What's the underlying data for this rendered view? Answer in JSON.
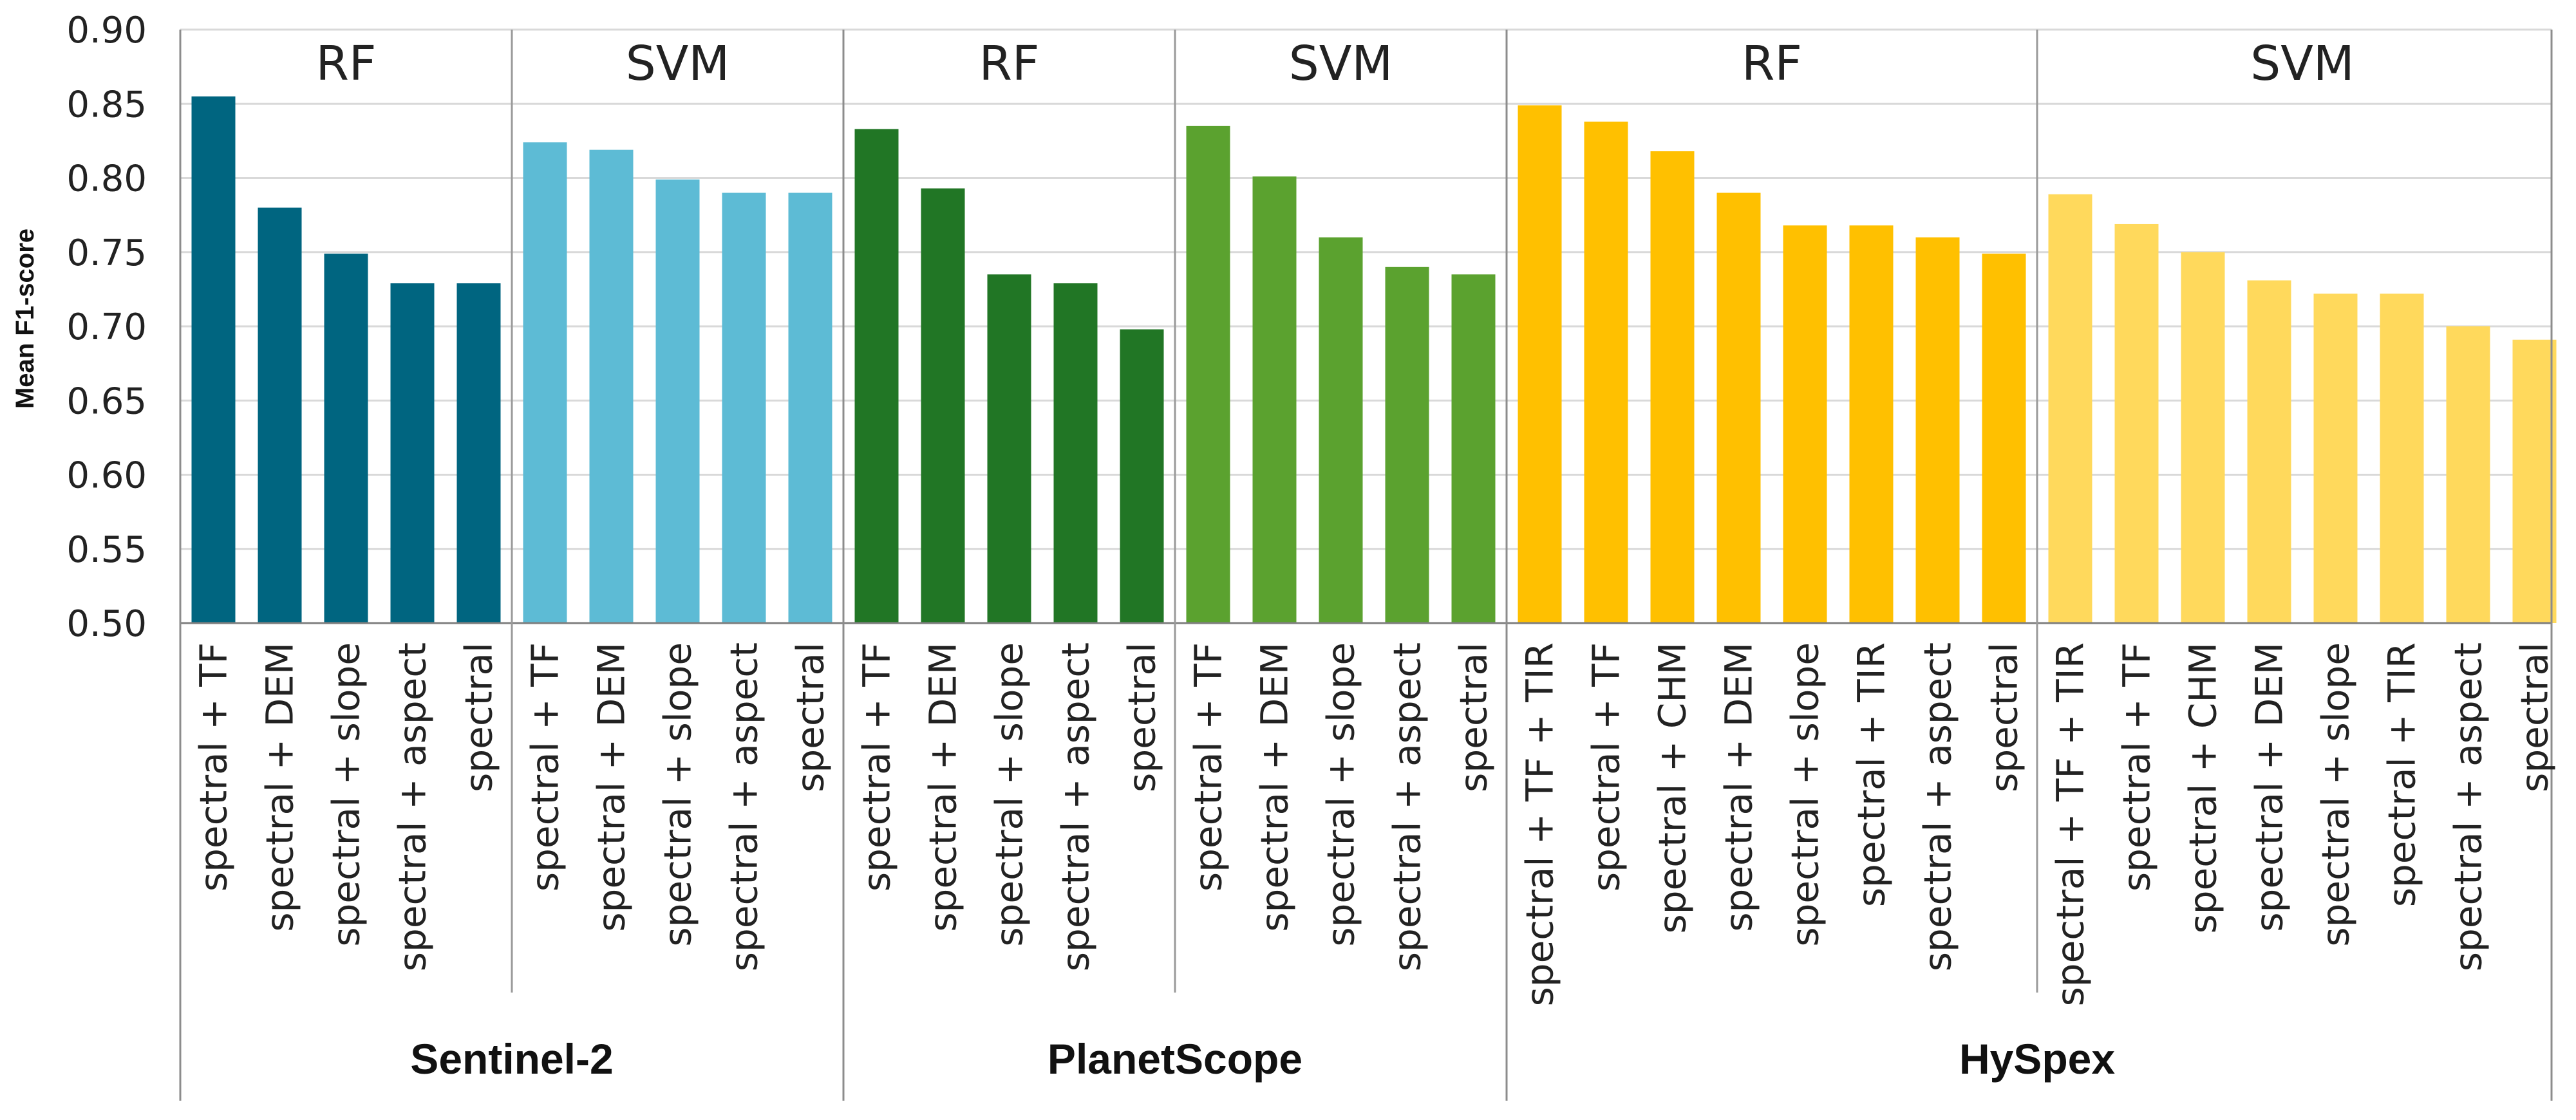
{
  "chart_data": {
    "type": "bar",
    "title": "",
    "xlabel": "",
    "ylabel": "Mean F1-score",
    "ylim": [
      0.5,
      0.9
    ],
    "yticks": [
      "0.50",
      "0.55",
      "0.60",
      "0.65",
      "0.70",
      "0.75",
      "0.80",
      "0.85",
      "0.90"
    ],
    "grid": true,
    "legend": "none",
    "sensors": [
      {
        "name": "Sentinel-2",
        "models": [
          {
            "name": "RF",
            "color": "#006580",
            "categories": [
              "spectral + TF",
              "spectral + DEM",
              "spectral + slope",
              "spectral + aspect",
              "spectral"
            ],
            "values": [
              0.855,
              0.78,
              0.749,
              0.729,
              0.729
            ]
          },
          {
            "name": "SVM",
            "color": "#5DBBD5",
            "categories": [
              "spectral + TF",
              "spectral + DEM",
              "spectral + slope",
              "spectral + aspect",
              "spectral"
            ],
            "values": [
              0.824,
              0.819,
              0.799,
              0.79,
              0.79
            ]
          }
        ]
      },
      {
        "name": "PlanetScope",
        "models": [
          {
            "name": "RF",
            "color": "#217625",
            "categories": [
              "spectral + TF",
              "spectral + DEM",
              "spectral + slope",
              "spectral + aspect",
              "spectral"
            ],
            "values": [
              0.833,
              0.793,
              0.735,
              0.729,
              0.698
            ]
          },
          {
            "name": "SVM",
            "color": "#5BA22F",
            "categories": [
              "spectral + TF",
              "spectral + DEM",
              "spectral + slope",
              "spectral + aspect",
              "spectral"
            ],
            "values": [
              0.835,
              0.801,
              0.76,
              0.74,
              0.735
            ]
          }
        ]
      },
      {
        "name": "HySpex",
        "models": [
          {
            "name": "RF",
            "color": "#FFC000",
            "categories": [
              "spectral + TF + TIR",
              "spectral + TF",
              "spectral + CHM",
              "spectral + DEM",
              "spectral + slope",
              "spectral + TIR",
              "spectral + aspect",
              "spectral"
            ],
            "values": [
              0.849,
              0.838,
              0.818,
              0.79,
              0.768,
              0.768,
              0.76,
              0.749
            ]
          },
          {
            "name": "SVM",
            "color": "#FFD95C",
            "categories": [
              "spectral + TF + TIR",
              "spectral + TF",
              "spectral + CHM",
              "spectral + DEM",
              "spectral + slope",
              "spectral + TIR",
              "spectral + aspect",
              "spectral"
            ],
            "values": [
              0.789,
              0.769,
              0.75,
              0.731,
              0.722,
              0.722,
              0.7,
              0.691
            ]
          }
        ]
      }
    ]
  }
}
